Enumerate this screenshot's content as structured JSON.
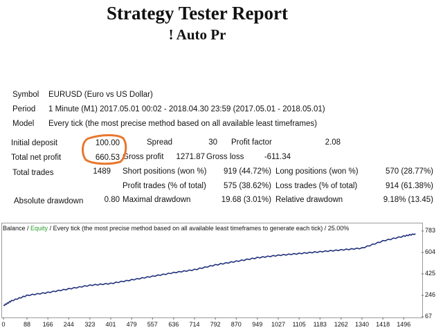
{
  "report": {
    "title": "Strategy Tester Report",
    "subtitle": "! Auto Pr"
  },
  "info": {
    "symbol_label": "Symbol",
    "symbol_value": "EURUSD (Euro vs US Dollar)",
    "period_label": "Period",
    "period_value": "1 Minute (M1) 2017.05.01 00:02 - 2018.04.30 23:59 (2017.05.01 - 2018.05.01)",
    "model_label": "Model",
    "model_value": "Every tick (the most precise method based on all available least timeframes)"
  },
  "stats": {
    "initial_deposit_label": "Initial deposit",
    "initial_deposit_value": "100.00",
    "spread_label": "Spread",
    "spread_value": "30",
    "profit_factor_label": "Profit factor",
    "profit_factor_value": "2.08",
    "total_net_profit_label": "Total net profit",
    "total_net_profit_value": "660.53",
    "gross_profit_label": "Gross profit",
    "gross_profit_value": "1271.87",
    "gross_loss_label": "Gross loss",
    "gross_loss_value": "-611.34",
    "total_trades_label": "Total trades",
    "total_trades_value": "1489",
    "short_positions_label": "Short positions (won %)",
    "short_positions_value": "919 (44.72%)",
    "long_positions_label": "Long positions (won %)",
    "long_positions_value": "570 (28.77%)",
    "profit_trades_label": "Profit trades (% of total)",
    "profit_trades_value": "575 (38.62%)",
    "loss_trades_label": "Loss trades (% of total)",
    "loss_trades_value": "914 (61.38%)",
    "absolute_drawdown_label": "Absolute drawdown",
    "absolute_drawdown_value": "0.80",
    "maximal_drawdown_label": "Maximal drawdown",
    "maximal_drawdown_value": "19.68 (3.01%)",
    "relative_drawdown_label": "Relative drawdown",
    "relative_drawdown_value": "9.18% (13.45)"
  },
  "colors": {
    "highlight_circle": "#e8772e",
    "balance_line": "#1f2f7a",
    "equity_text": "#2e9d2e"
  },
  "chart_data": {
    "type": "line",
    "legend_balance": "Balance",
    "legend_sep": " / ",
    "legend_equity": "Equity",
    "legend_rest": " / Every tick (the most precise method based on all available least timeframes to generate each tick) / 25.00%",
    "x_ticks": [
      "0",
      "88",
      "166",
      "244",
      "323",
      "401",
      "479",
      "557",
      "636",
      "714",
      "792",
      "870",
      "949",
      "1027",
      "1105",
      "1183",
      "1262",
      "1340",
      "1418",
      "1496"
    ],
    "y_ticks": [
      "783",
      "604",
      "425",
      "246",
      "67"
    ],
    "xlim": [
      0,
      1560
    ],
    "ylim": [
      67,
      783
    ],
    "series": [
      {
        "x": [
          0,
          30,
          88,
          166,
          244,
          323,
          401,
          479,
          557,
          636,
          714,
          792,
          870,
          949,
          1027,
          1105,
          1183,
          1262,
          1340,
          1418,
          1496,
          1540
        ],
        "y": [
          160,
          200,
          245,
          270,
          300,
          330,
          345,
          375,
          405,
          435,
          460,
          500,
          530,
          560,
          580,
          595,
          610,
          625,
          640,
          700,
          740,
          760
        ]
      }
    ]
  }
}
